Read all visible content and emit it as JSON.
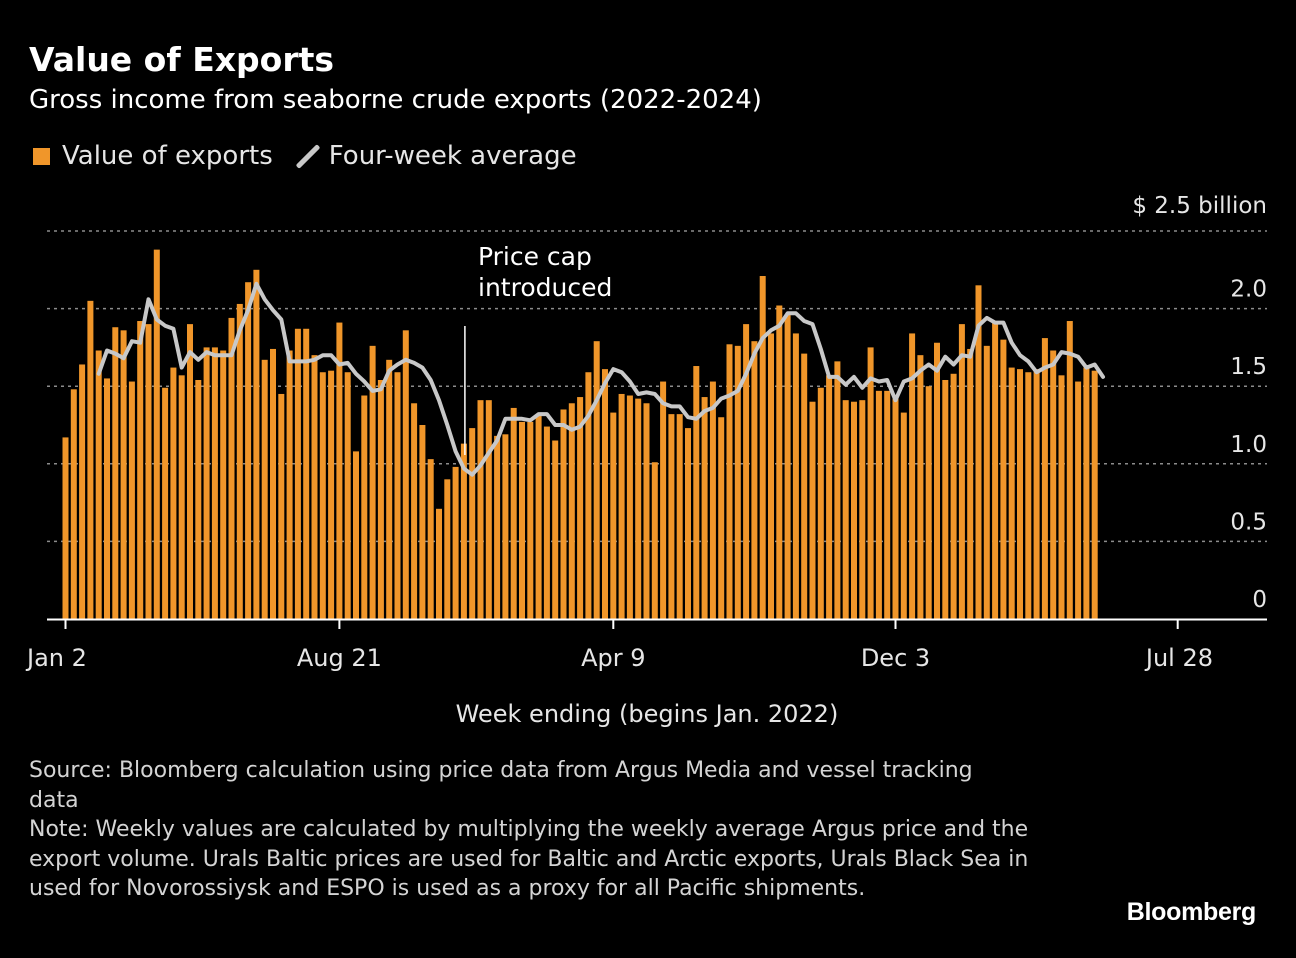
{
  "header": {
    "title": "Value of Exports",
    "subtitle": "Gross income from seaborne crude exports (2022-2024)"
  },
  "legend": {
    "bar_label": "Value of exports",
    "line_label": "Four-week average"
  },
  "colors": {
    "bar": "#f0962a",
    "line": "#c8c8c8",
    "grid": "#8c8c8c",
    "background": "#000000"
  },
  "footer": {
    "source": "Source: Bloomberg calculation using price data from Argus Media and vessel tracking data",
    "note": "Note: Weekly values are calculated by multiplying the weekly average Argus price and the export volume. Urals Baltic prices are used for Baltic and Arctic exports, Urals Black Sea in used for Novorossiysk and ESPO is used as a proxy for all Pacific shipments."
  },
  "brand": "Bloomberg",
  "chart_data": {
    "type": "bar",
    "xlabel": "Week ending (begins Jan. 2022)",
    "y_unit_label": "$ 2.5 billion",
    "ylim": [
      0,
      2.5
    ],
    "y_ticks": [
      {
        "value": 0,
        "label": "0"
      },
      {
        "value": 0.5,
        "label": "0.5"
      },
      {
        "value": 1.0,
        "label": "1.0"
      },
      {
        "value": 1.5,
        "label": "1.5"
      },
      {
        "value": 2.0,
        "label": "2.0"
      }
    ],
    "x_ticks": [
      {
        "index": 0,
        "label": "Jan 2"
      },
      {
        "index": 33,
        "label": "Aug 21"
      },
      {
        "index": 66,
        "label": "Apr 9"
      },
      {
        "index": 100,
        "label": "Dec 3"
      },
      {
        "index": 134,
        "label": "Jul 28"
      }
    ],
    "annotation": {
      "index": 48,
      "text_lines": [
        "Price cap",
        "introduced"
      ]
    },
    "grid": true,
    "legend_position": "top-left",
    "series": [
      {
        "name": "Value of exports",
        "type": "bar",
        "values": [
          1.17,
          1.48,
          1.64,
          2.05,
          1.73,
          1.55,
          1.88,
          1.86,
          1.53,
          1.92,
          1.9,
          2.38,
          1.49,
          1.62,
          1.57,
          1.9,
          1.54,
          1.75,
          1.75,
          1.73,
          1.94,
          2.03,
          2.17,
          2.25,
          1.67,
          1.74,
          1.45,
          1.73,
          1.87,
          1.87,
          1.7,
          1.59,
          1.6,
          1.91,
          1.59,
          1.08,
          1.44,
          1.76,
          1.54,
          1.67,
          1.59,
          1.86,
          1.39,
          1.25,
          1.03,
          0.71,
          0.9,
          0.98,
          1.13,
          1.23,
          1.41,
          1.41,
          1.18,
          1.19,
          1.36,
          1.27,
          1.27,
          1.32,
          1.24,
          1.15,
          1.35,
          1.39,
          1.43,
          1.59,
          1.79,
          1.61,
          1.33,
          1.45,
          1.44,
          1.42,
          1.39,
          1.01,
          1.53,
          1.32,
          1.32,
          1.23,
          1.63,
          1.43,
          1.53,
          1.3,
          1.77,
          1.76,
          1.9,
          1.79,
          2.21,
          1.84,
          2.02,
          1.96,
          1.84,
          1.71,
          1.4,
          1.49,
          1.57,
          1.66,
          1.41,
          1.4,
          1.41,
          1.75,
          1.47,
          1.47,
          1.42,
          1.33,
          1.84,
          1.7,
          1.5,
          1.78,
          1.54,
          1.58,
          1.9,
          1.74,
          2.15,
          1.76,
          1.91,
          1.8,
          1.62,
          1.61,
          1.59,
          1.61,
          1.81,
          1.73,
          1.57,
          1.92,
          1.53,
          1.62,
          1.6
        ],
        "x_index_start": 0
      },
      {
        "name": "Four-week average",
        "type": "line",
        "values": [
          1.58,
          1.73,
          1.71,
          1.68,
          1.79,
          1.78,
          2.06,
          1.93,
          1.89,
          1.87,
          1.62,
          1.72,
          1.67,
          1.72,
          1.7,
          1.7,
          1.7,
          1.86,
          1.99,
          2.16,
          2.06,
          1.99,
          1.93,
          1.66,
          1.66,
          1.66,
          1.67,
          1.7,
          1.7,
          1.64,
          1.65,
          1.58,
          1.53,
          1.47,
          1.48,
          1.6,
          1.64,
          1.67,
          1.65,
          1.62,
          1.54,
          1.41,
          1.25,
          1.08,
          0.97,
          0.93,
          0.99,
          1.07,
          1.15,
          1.29,
          1.29,
          1.29,
          1.28,
          1.32,
          1.32,
          1.25,
          1.25,
          1.22,
          1.24,
          1.31,
          1.41,
          1.52,
          1.61,
          1.59,
          1.53,
          1.45,
          1.46,
          1.45,
          1.39,
          1.37,
          1.37,
          1.3,
          1.29,
          1.34,
          1.36,
          1.42,
          1.44,
          1.47,
          1.58,
          1.71,
          1.81,
          1.86,
          1.89,
          1.97,
          1.97,
          1.92,
          1.9,
          1.74,
          1.56,
          1.56,
          1.51,
          1.56,
          1.49,
          1.55,
          1.53,
          1.54,
          1.41,
          1.53,
          1.55,
          1.6,
          1.64,
          1.6,
          1.69,
          1.64,
          1.7,
          1.69,
          1.89,
          1.94,
          1.91,
          1.91,
          1.78,
          1.7,
          1.66,
          1.59,
          1.62,
          1.64,
          1.72,
          1.71,
          1.69,
          1.62,
          1.64,
          1.56
        ],
        "x_index_start": 4
      }
    ]
  }
}
